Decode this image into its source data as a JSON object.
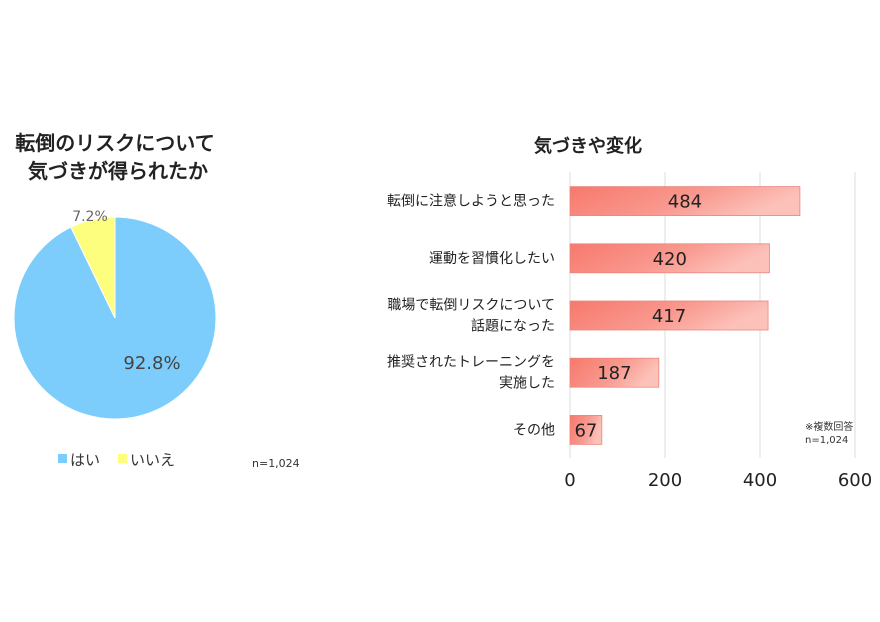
{
  "chart_data": [
    {
      "type": "pie",
      "title_lines": [
        "転倒のリスクについて",
        "気づきが得られたか"
      ],
      "slices": [
        {
          "label": "はい",
          "value": 92.8,
          "display": "92.8%",
          "color": "#7ccdfc"
        },
        {
          "label": "いいえ",
          "value": 7.2,
          "display": "7.2%",
          "color": "#fdfd7e"
        }
      ],
      "legend": "bottom",
      "note": "n=1,024"
    },
    {
      "type": "bar",
      "orientation": "horizontal",
      "title": "気づきや変化",
      "categories": [
        [
          "転倒に注意しようと思った"
        ],
        [
          "運動を習慣化したい"
        ],
        [
          "職場で転倒リスクについて",
          "話題になった"
        ],
        [
          "推奨されたトレーニングを",
          "実施した"
        ],
        [
          "その他"
        ]
      ],
      "values": [
        484,
        420,
        417,
        187,
        67
      ],
      "xlim": [
        0,
        600
      ],
      "xticks": [
        0,
        200,
        400,
        600
      ],
      "grid": true,
      "bar_color": "#f7857a",
      "notes": [
        "※複数回答",
        "n=1,024"
      ]
    }
  ]
}
